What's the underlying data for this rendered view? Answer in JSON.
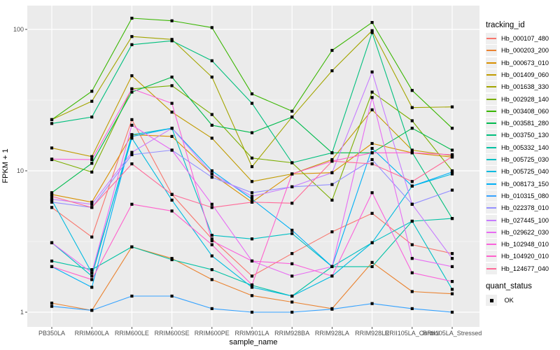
{
  "figure": {
    "y_axis": {
      "title": "FPKM + 1",
      "ticks": [
        "100",
        "10",
        "1"
      ],
      "tick_values": [
        100,
        10,
        1
      ]
    },
    "x_axis": {
      "title": "sample_name"
    },
    "legend": {
      "tracking_title": "tracking_id",
      "quant_title": "quant_status",
      "quant_value": "OK"
    },
    "panel_bg": "#ebebeb",
    "grid_color": "#ffffff",
    "point_color": "#000000",
    "tick_text_color": "#4d4d4d"
  },
  "chart_data": {
    "type": "line",
    "title": "",
    "xlabel": "sample_name",
    "ylabel": "FPKM + 1",
    "y_scale": "log10",
    "ylim": [
      1,
      130
    ],
    "y_major_breaks": [
      1,
      10,
      100
    ],
    "y_minor_breaks": [
      3.1623,
      31.623
    ],
    "grid": true,
    "legend_position": "right",
    "point_shape": "black-square",
    "quant_status": "OK",
    "categories": [
      "PB350LA",
      "RRIM600LA",
      "RRIM600LE",
      "RRIM600SE",
      "RRIM600PE",
      "RRIM901LA",
      "RRIM928BA",
      "RRIM928LA",
      "RRIM928LE",
      "RRII105LA_Control",
      "RRII105LA_Stressed"
    ],
    "series": [
      {
        "name": "Hb_000107_480",
        "color": "#F8766D",
        "values": [
          5.5,
          3.4,
          23,
          6.8,
          3.3,
          1.8,
          2.6,
          3.7,
          5.0,
          3.0,
          2.6
        ]
      },
      {
        "name": "Hb_000203_200",
        "color": "#EA8331",
        "values": [
          1.16,
          1.03,
          2.9,
          2.4,
          1.7,
          1.31,
          1.18,
          1.06,
          2.25,
          1.4,
          1.35
        ]
      },
      {
        "name": "Hb_000673_010",
        "color": "#D89000",
        "values": [
          6.8,
          6.0,
          18,
          17.5,
          9.5,
          6.0,
          9.5,
          9.7,
          15.6,
          13.4,
          12.5
        ]
      },
      {
        "name": "Hb_001409_060",
        "color": "#C09B00",
        "values": [
          14.5,
          12.6,
          47,
          26,
          17,
          8.4,
          9.5,
          12,
          27,
          14,
          12.8
        ]
      },
      {
        "name": "Hb_001638_330",
        "color": "#A3A500",
        "values": [
          23,
          31,
          89,
          85,
          46,
          10.7,
          24,
          51,
          98,
          28,
          28.3
        ]
      },
      {
        "name": "Hb_002928_140",
        "color": "#7CAE00",
        "values": [
          12,
          9.8,
          38,
          40,
          25,
          12.3,
          11.4,
          6.2,
          36,
          22.6,
          10
        ]
      },
      {
        "name": "Hb_003408_060",
        "color": "#39B600",
        "values": [
          23,
          36.5,
          120,
          115,
          103,
          35,
          26.4,
          71,
          112,
          37,
          20
        ]
      },
      {
        "name": "Hb_003581_280",
        "color": "#00BB4E",
        "values": [
          7.0,
          11.3,
          36,
          46,
          21,
          18.6,
          24,
          13.4,
          13.4,
          20,
          14
        ]
      },
      {
        "name": "Hb_003750_130",
        "color": "#00BF7D",
        "values": [
          21.6,
          24,
          78,
          83,
          60,
          30,
          11.4,
          13.4,
          95,
          13.5,
          4.6
        ]
      },
      {
        "name": "Hb_005332_140",
        "color": "#00C1A3",
        "values": [
          2.3,
          2.0,
          2.9,
          2.35,
          2.0,
          1.55,
          1.3,
          2.1,
          2.1,
          4.4,
          4.6
        ]
      },
      {
        "name": "Hb_005725_030",
        "color": "#00BFC4",
        "values": [
          3.1,
          1.8,
          18,
          20,
          3.5,
          3.3,
          3.6,
          2.1,
          3.1,
          4.4,
          1.45
        ]
      },
      {
        "name": "Hb_005725_040",
        "color": "#00BAE0",
        "values": [
          6.2,
          1.9,
          17,
          6.2,
          2.5,
          1.5,
          1.3,
          1.8,
          3.1,
          7.8,
          9.5
        ]
      },
      {
        "name": "Hb_008173_150",
        "color": "#00B0F6",
        "values": [
          2.1,
          1.5,
          17.5,
          20,
          10,
          6.3,
          3.8,
          2.1,
          14.4,
          7.8,
          9.8
        ]
      },
      {
        "name": "Hb_010315_080",
        "color": "#35A2FF",
        "values": [
          1.1,
          1.03,
          1.3,
          1.3,
          1.06,
          1.0,
          1.0,
          1.05,
          1.15,
          1.06,
          1.0
        ]
      },
      {
        "name": "Hb_022378_010",
        "color": "#9590FF",
        "values": [
          6.0,
          5.5,
          13,
          14,
          9.0,
          7.0,
          7.7,
          8.0,
          12,
          5.8,
          7.3
        ]
      },
      {
        "name": "Hb_027445_100",
        "color": "#C77CFF",
        "values": [
          6.3,
          5.8,
          13.5,
          20,
          9.5,
          6.6,
          7.7,
          9.7,
          50,
          5.8,
          2.4
        ]
      },
      {
        "name": "Hb_029622_030",
        "color": "#E76BF3",
        "values": [
          3.1,
          1.9,
          21,
          14,
          5.8,
          2.3,
          1.8,
          2.1,
          33,
          2.4,
          2.1
        ]
      },
      {
        "name": "Hb_102948_010",
        "color": "#FA62DB",
        "values": [
          12.1,
          12,
          38,
          30,
          3.2,
          2.3,
          2.2,
          1.8,
          7.0,
          1.9,
          1.65
        ]
      },
      {
        "name": "Hb_104920_010",
        "color": "#FF61CC",
        "values": [
          2.1,
          1.7,
          5.8,
          5.2,
          3.0,
          1.56,
          9.5,
          11.7,
          13.4,
          13.4,
          13.0
        ]
      },
      {
        "name": "Hb_124677_040",
        "color": "#FF6A98",
        "values": [
          6.6,
          5.5,
          11.2,
          6.8,
          5.5,
          6.0,
          5.9,
          11.7,
          11.2,
          8.4,
          12.6
        ]
      }
    ]
  }
}
